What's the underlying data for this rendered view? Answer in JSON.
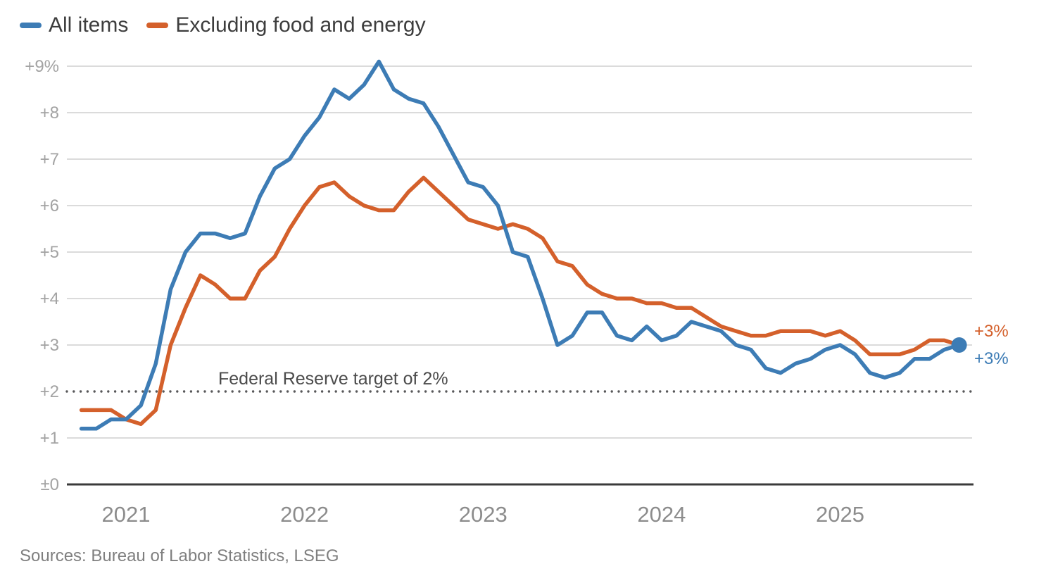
{
  "legend": {
    "items": [
      {
        "label": "All items",
        "color": "#3d7cb5"
      },
      {
        "label": "Excluding food and energy",
        "color": "#d4602b"
      }
    ]
  },
  "source": {
    "text": "Sources: Bureau of Labor Statistics, LSEG"
  },
  "colors": {
    "all_items": "#3d7cb5",
    "excluding_food_energy": "#d4602b",
    "gridline": "#cfcfcf",
    "baseline_axis": "#3a3a3a",
    "y_tick_label": "#a3a3a3",
    "x_tick_label": "#8c8c8c",
    "target_dots": "#58585a",
    "annotation_text": "#4b4b4b",
    "legend_text": "#3d3d3d",
    "source_text": "#7f7f7f",
    "background": "#ffffff"
  },
  "chart_data": {
    "type": "line",
    "title": "",
    "xlabel": "",
    "ylabel": "",
    "grid": true,
    "legend_position": "top-left",
    "ylim": [
      0,
      9.3
    ],
    "x": [
      "2020-10",
      "2020-11",
      "2020-12",
      "2021-01",
      "2021-02",
      "2021-03",
      "2021-04",
      "2021-05",
      "2021-06",
      "2021-07",
      "2021-08",
      "2021-09",
      "2021-10",
      "2021-11",
      "2021-12",
      "2022-01",
      "2022-02",
      "2022-03",
      "2022-04",
      "2022-05",
      "2022-06",
      "2022-07",
      "2022-08",
      "2022-09",
      "2022-10",
      "2022-11",
      "2022-12",
      "2023-01",
      "2023-02",
      "2023-03",
      "2023-04",
      "2023-05",
      "2023-06",
      "2023-07",
      "2023-08",
      "2023-09",
      "2023-10",
      "2023-11",
      "2023-12",
      "2024-01",
      "2024-02",
      "2024-03",
      "2024-04",
      "2024-05",
      "2024-06",
      "2024-07",
      "2024-08",
      "2024-09",
      "2024-10",
      "2024-11",
      "2024-12",
      "2025-01",
      "2025-02",
      "2025-03",
      "2025-04",
      "2025-05",
      "2025-06",
      "2025-07",
      "2025-08",
      "2025-09"
    ],
    "series": [
      {
        "name": "All items",
        "color": "#3d7cb5",
        "values": [
          1.2,
          1.2,
          1.4,
          1.4,
          1.7,
          2.6,
          4.2,
          5.0,
          5.4,
          5.4,
          5.3,
          5.4,
          6.2,
          6.8,
          7.0,
          7.5,
          7.9,
          8.5,
          8.3,
          8.6,
          9.1,
          8.5,
          8.3,
          8.2,
          7.7,
          7.1,
          6.5,
          6.4,
          6.0,
          5.0,
          4.9,
          4.0,
          3.0,
          3.2,
          3.7,
          3.7,
          3.2,
          3.1,
          3.4,
          3.1,
          3.2,
          3.5,
          3.4,
          3.3,
          3.0,
          2.9,
          2.5,
          2.4,
          2.6,
          2.7,
          2.9,
          3.0,
          2.8,
          2.4,
          2.3,
          2.4,
          2.7,
          2.7,
          2.9,
          3.0
        ]
      },
      {
        "name": "Excluding food and energy",
        "color": "#d4602b",
        "values": [
          1.6,
          1.6,
          1.6,
          1.4,
          1.3,
          1.6,
          3.0,
          3.8,
          4.5,
          4.3,
          4.0,
          4.0,
          4.6,
          4.9,
          5.5,
          6.0,
          6.4,
          6.5,
          6.2,
          6.0,
          5.9,
          5.9,
          6.3,
          6.6,
          6.3,
          6.0,
          5.7,
          5.6,
          5.5,
          5.6,
          5.5,
          5.3,
          4.8,
          4.7,
          4.3,
          4.1,
          4.0,
          4.0,
          3.9,
          3.9,
          3.8,
          3.8,
          3.6,
          3.4,
          3.3,
          3.2,
          3.2,
          3.3,
          3.3,
          3.3,
          3.2,
          3.3,
          3.1,
          2.8,
          2.8,
          2.8,
          2.9,
          3.1,
          3.1,
          3.0
        ]
      }
    ],
    "y_ticks": [
      {
        "value": 0,
        "label": "±0"
      },
      {
        "value": 1,
        "label": "+1"
      },
      {
        "value": 2,
        "label": "+2"
      },
      {
        "value": 3,
        "label": "+3"
      },
      {
        "value": 4,
        "label": "+4"
      },
      {
        "value": 5,
        "label": "+5"
      },
      {
        "value": 6,
        "label": "+6"
      },
      {
        "value": 7,
        "label": "+7"
      },
      {
        "value": 8,
        "label": "+8"
      },
      {
        "value": 9,
        "label": "+9%"
      }
    ],
    "x_ticks": [
      {
        "label": "2021",
        "month": "2021-01"
      },
      {
        "label": "2022",
        "month": "2022-01"
      },
      {
        "label": "2023",
        "month": "2023-01"
      },
      {
        "label": "2024",
        "month": "2024-01"
      },
      {
        "label": "2025",
        "month": "2025-01"
      }
    ],
    "reference_line": {
      "value": 2,
      "label": "Federal Reserve target of 2%"
    },
    "end_marker": {
      "series": "All items",
      "month": "2025-09",
      "value": 3.0
    },
    "end_labels": [
      {
        "series": "Excluding food and energy",
        "text": "+3%"
      },
      {
        "series": "All items",
        "text": "+3%"
      }
    ]
  }
}
